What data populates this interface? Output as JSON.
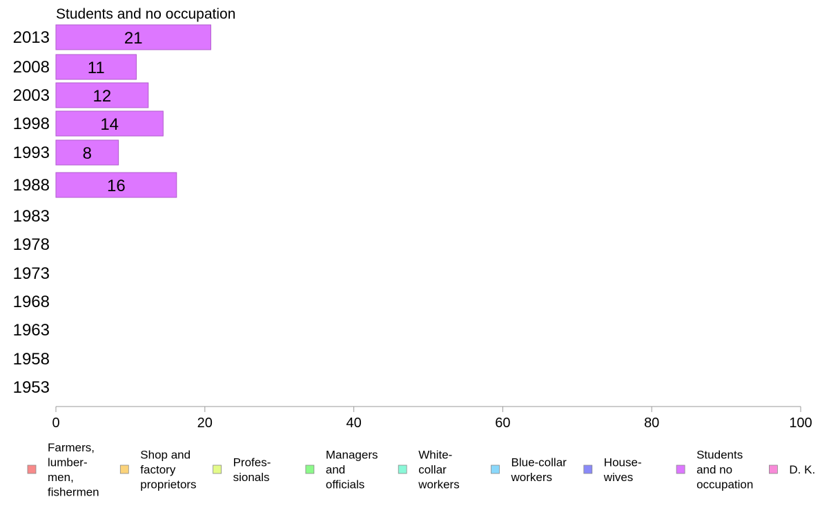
{
  "chart_data": {
    "type": "bar",
    "orientation": "horizontal",
    "title": "Students and no occupation",
    "categories": [
      "2013",
      "2008",
      "2003",
      "1998",
      "1993",
      "1988",
      "1983",
      "1978",
      "1973",
      "1968",
      "1963",
      "1958",
      "1953"
    ],
    "series": [
      {
        "values": [
          20.8,
          10.8,
          12.4,
          14.4,
          8.4,
          16.2,
          null,
          null,
          null,
          null,
          null,
          null,
          null
        ],
        "labels": [
          "21",
          "11",
          "12",
          "14",
          "8",
          "16",
          "",
          "",
          "",
          "",
          "",
          "",
          ""
        ],
        "color": "#dd77ff"
      }
    ],
    "xlim": [
      0,
      100
    ],
    "xticks": [
      "0",
      "20",
      "40",
      "60",
      "80",
      "100"
    ],
    "grid": false,
    "legend": {
      "placement": "bottom",
      "items": [
        {
          "lines": [
            "Farmers,",
            "lumber-",
            "men,",
            "fishermen"
          ],
          "color": "#f88a8a"
        },
        {
          "lines": [
            "Shop and",
            "factory",
            "proprietors"
          ],
          "color": "#fbd37a"
        },
        {
          "lines": [
            "Profes-",
            "sionals"
          ],
          "color": "#e4fb8a"
        },
        {
          "lines": [
            "Managers",
            "and",
            "officials"
          ],
          "color": "#8cf98a"
        },
        {
          "lines": [
            "White-",
            "collar",
            "workers"
          ],
          "color": "#8af8d8"
        },
        {
          "lines": [
            "Blue-collar",
            "workers"
          ],
          "color": "#8ad8fb"
        },
        {
          "lines": [
            "House-",
            "wives"
          ],
          "color": "#8a8af8"
        },
        {
          "lines": [
            "Students",
            "and no",
            "occupation"
          ],
          "color": "#dd77ff"
        },
        {
          "lines": [
            "D. K."
          ],
          "color": "#f88ad8"
        }
      ]
    }
  }
}
